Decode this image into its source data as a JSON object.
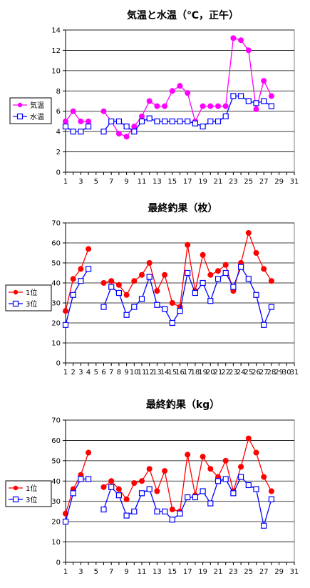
{
  "chart_data": [
    {
      "type": "line",
      "title": "気温と水温（℃，正午）",
      "xlabel": "",
      "ylabel": "",
      "ylim": [
        0,
        14
      ],
      "yticks": [
        0,
        2,
        4,
        6,
        8,
        10,
        12,
        14
      ],
      "xlim": [
        1,
        31
      ],
      "xticks": [
        1,
        3,
        5,
        7,
        9,
        11,
        13,
        15,
        17,
        19,
        21,
        23,
        25,
        27,
        29,
        31
      ],
      "grid": "horizontal",
      "legend_position": "left",
      "x": [
        1,
        2,
        3,
        4,
        5,
        6,
        7,
        8,
        9,
        10,
        11,
        12,
        13,
        14,
        15,
        16,
        17,
        18,
        19,
        20,
        21,
        22,
        23,
        24,
        25,
        26,
        27,
        28
      ],
      "series": [
        {
          "name": "気温",
          "color": "#ff00ff",
          "marker": "filled-circle",
          "values": [
            5.0,
            6.0,
            5.0,
            5.0,
            null,
            6.0,
            5.0,
            3.8,
            3.5,
            4.5,
            5.5,
            7.0,
            6.5,
            6.5,
            8.0,
            8.5,
            7.8,
            5.0,
            6.5,
            6.5,
            6.5,
            6.5,
            13.2,
            13.0,
            12.0,
            6.2,
            9.0,
            7.5
          ]
        },
        {
          "name": "水温",
          "color": "#0000ff",
          "marker": "open-square",
          "values": [
            4.5,
            4.0,
            4.0,
            4.5,
            null,
            4.0,
            5.0,
            5.0,
            4.5,
            4.0,
            5.0,
            5.3,
            5.0,
            5.0,
            5.0,
            5.0,
            5.0,
            4.8,
            4.5,
            5.0,
            5.0,
            5.5,
            7.5,
            7.5,
            7.0,
            6.8,
            7.0,
            6.5
          ]
        }
      ]
    },
    {
      "type": "line",
      "title": "最終釣果（枚）",
      "xlabel": "",
      "ylabel": "",
      "ylim": [
        0,
        70
      ],
      "yticks": [
        0,
        10,
        20,
        30,
        40,
        50,
        60,
        70
      ],
      "xlim": [
        1,
        31
      ],
      "xticks": [
        1,
        2,
        3,
        4,
        5,
        6,
        7,
        8,
        9,
        10,
        11,
        12,
        13,
        14,
        15,
        16,
        17,
        18,
        19,
        20,
        21,
        22,
        23,
        24,
        25,
        26,
        27,
        28,
        29,
        30,
        31
      ],
      "grid": "horizontal",
      "legend_position": "left",
      "x": [
        1,
        2,
        3,
        4,
        5,
        6,
        7,
        8,
        9,
        10,
        11,
        12,
        13,
        14,
        15,
        16,
        17,
        18,
        19,
        20,
        21,
        22,
        23,
        24,
        25,
        26,
        27,
        28
      ],
      "series": [
        {
          "name": "1位",
          "color": "#ff0000",
          "marker": "filled-circle",
          "values": [
            26,
            42,
            47,
            57,
            null,
            40,
            41,
            39,
            34,
            41,
            44,
            50,
            36,
            44,
            30,
            28,
            59,
            36,
            54,
            44,
            46,
            49,
            36,
            50,
            65,
            55,
            47,
            41
          ]
        },
        {
          "name": "3位",
          "color": "#0000ff",
          "marker": "open-square",
          "values": [
            19,
            34,
            41,
            47,
            null,
            28,
            38,
            35,
            24,
            28,
            32,
            43,
            29,
            27,
            20,
            26,
            45,
            35,
            40,
            31,
            42,
            45,
            38,
            48,
            42,
            34,
            19,
            28
          ]
        }
      ]
    },
    {
      "type": "line",
      "title": "最終釣果（kg）",
      "xlabel": "",
      "ylabel": "",
      "ylim": [
        0,
        70
      ],
      "yticks": [
        0,
        10,
        20,
        30,
        40,
        50,
        60,
        70
      ],
      "xlim": [
        1,
        31
      ],
      "xticks": [
        1,
        3,
        5,
        7,
        9,
        11,
        13,
        15,
        17,
        19,
        21,
        23,
        25,
        27,
        29,
        31
      ],
      "grid": "horizontal",
      "legend_position": "left",
      "x": [
        1,
        2,
        3,
        4,
        5,
        6,
        7,
        8,
        9,
        10,
        11,
        12,
        13,
        14,
        15,
        16,
        17,
        18,
        19,
        20,
        21,
        22,
        23,
        24,
        25,
        26,
        27,
        28
      ],
      "series": [
        {
          "name": "1位",
          "color": "#ff0000",
          "marker": "filled-circle",
          "values": [
            24,
            36,
            43,
            54,
            null,
            37,
            40,
            36,
            31,
            39,
            40,
            46,
            35,
            45,
            26,
            25,
            53,
            33,
            52,
            46,
            42,
            50,
            35,
            47,
            61,
            54,
            42,
            35
          ]
        },
        {
          "name": "3位",
          "color": "#0000ff",
          "marker": "open-square",
          "values": [
            20,
            34,
            41,
            41,
            null,
            26,
            37,
            33,
            23,
            25,
            34,
            36,
            25,
            25,
            21,
            24,
            32,
            32,
            35,
            29,
            40,
            41,
            34,
            42,
            38,
            36,
            18,
            31
          ]
        }
      ]
    }
  ]
}
